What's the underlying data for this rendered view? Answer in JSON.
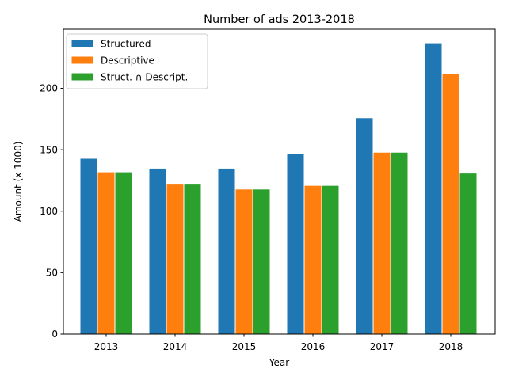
{
  "chart_data": {
    "type": "bar",
    "title": "Number of ads 2013-2018",
    "xlabel": "Year",
    "ylabel": "Amount (x 1000)",
    "categories": [
      "2013",
      "2014",
      "2015",
      "2016",
      "2017",
      "2018"
    ],
    "series": [
      {
        "name": "Structured",
        "color": "#1f77b4",
        "values": [
          143,
          135,
          135,
          147,
          176,
          237
        ]
      },
      {
        "name": "Descriptive",
        "color": "#ff7f0e",
        "values": [
          132,
          122,
          118,
          121,
          148,
          212
        ]
      },
      {
        "name": "Struct. ∩ Descript.",
        "color": "#2ca02c",
        "values": [
          132,
          122,
          118,
          121,
          148,
          131
        ]
      }
    ],
    "ylim": [
      0,
      248
    ],
    "yticks": [
      0,
      50,
      100,
      150,
      200
    ],
    "grid": false,
    "legend_position": "top-left"
  }
}
